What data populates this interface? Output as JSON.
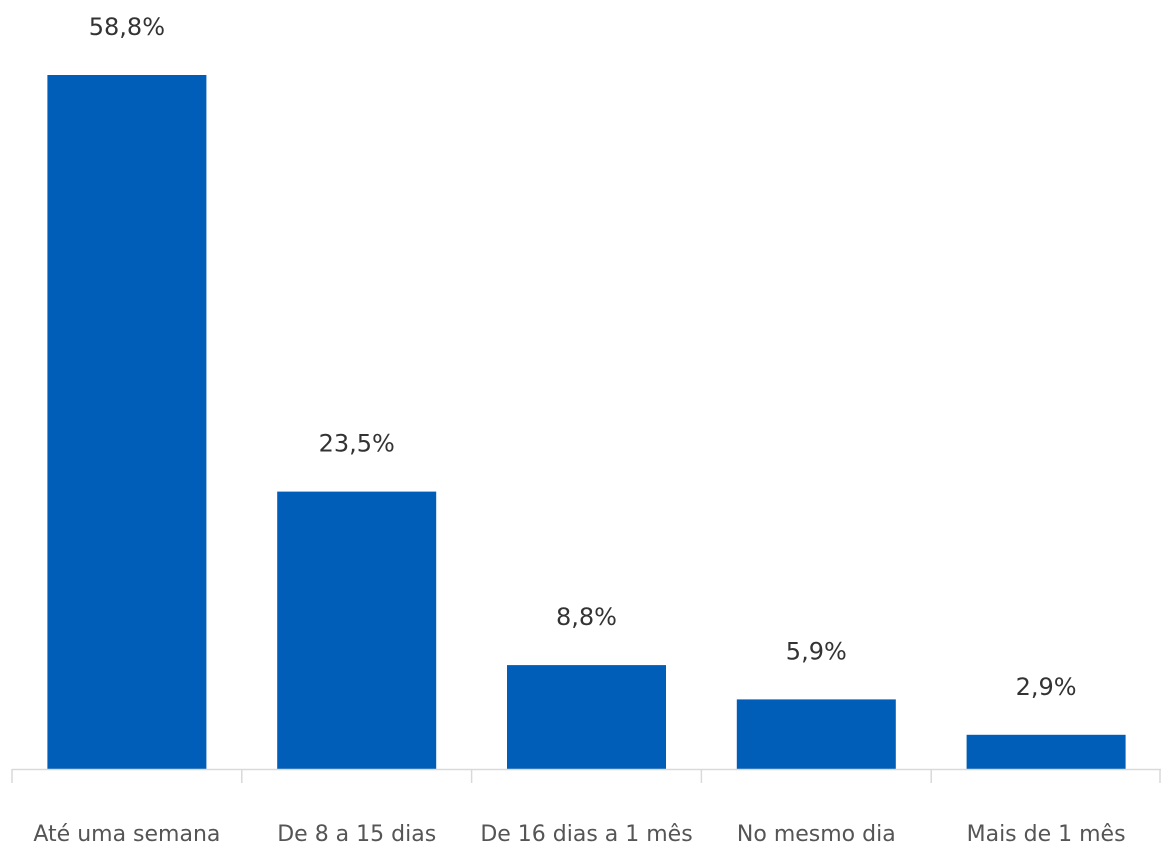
{
  "chart_data": {
    "type": "bar",
    "categories": [
      "Até uma semana",
      "De 8 a 15 dias",
      "De 16 dias a 1 mês",
      "No mesmo dia",
      "Mais de 1 mês"
    ],
    "values": [
      58.8,
      23.5,
      8.8,
      5.9,
      2.9
    ],
    "value_labels": [
      "58,8%",
      "23,5%",
      "8,8%",
      "5,9%",
      "2,9%"
    ],
    "title": "",
    "xlabel": "",
    "ylabel": "",
    "ylim": [
      0,
      58.8
    ],
    "grid": false,
    "legend": "none",
    "bar_color": "#005EB8",
    "axis_color": "#D9D9D9",
    "label_color": "#333333",
    "tick_color": "#555555"
  }
}
